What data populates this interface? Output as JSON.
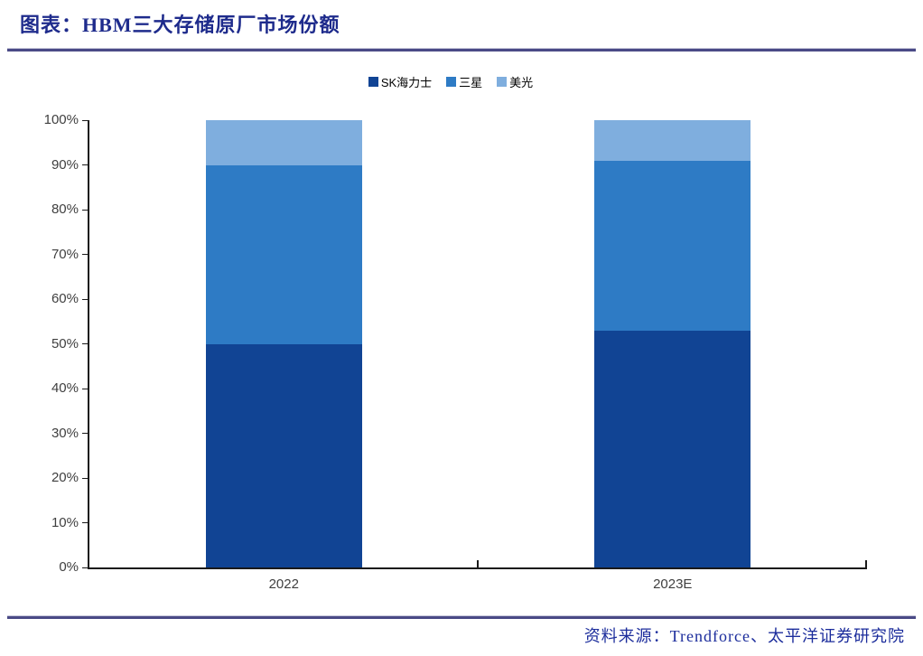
{
  "page": {
    "title": "图表：HBM三大存储原厂市场份额",
    "source": "资料来源：Trendforce、太平洋证券研究院"
  },
  "colors": {
    "title_navy": "#1E2B8C",
    "source_blue": "#1C2D9C",
    "divider_rule": "#4A4A86",
    "axis_line": "#1A1A1A",
    "tick_label_gray": "#3F3F3F",
    "sk_hynix_blue": "#114494",
    "samsung_blue": "#2E7BC5",
    "micron_blue": "#7FAEDE"
  },
  "chart_data": {
    "type": "bar",
    "stacked": true,
    "title": "图表：HBM三大存储原厂市场份额",
    "categories": [
      "2022",
      "2023E"
    ],
    "series": [
      {
        "name": "SK海力士",
        "color": "#114494",
        "values": [
          50,
          53
        ]
      },
      {
        "name": "三星",
        "color": "#2E7BC5",
        "values": [
          40,
          38
        ]
      },
      {
        "name": "美光",
        "color": "#7FAEDE",
        "values": [
          10,
          9
        ]
      }
    ],
    "xlabel": "",
    "ylabel": "",
    "ylim": [
      0,
      100
    ],
    "ytick_step": 10,
    "yticks": [
      "0%",
      "10%",
      "20%",
      "30%",
      "40%",
      "50%",
      "60%",
      "70%",
      "80%",
      "90%",
      "100%"
    ],
    "grid": false,
    "legend_position": "top",
    "unit": "percent"
  }
}
